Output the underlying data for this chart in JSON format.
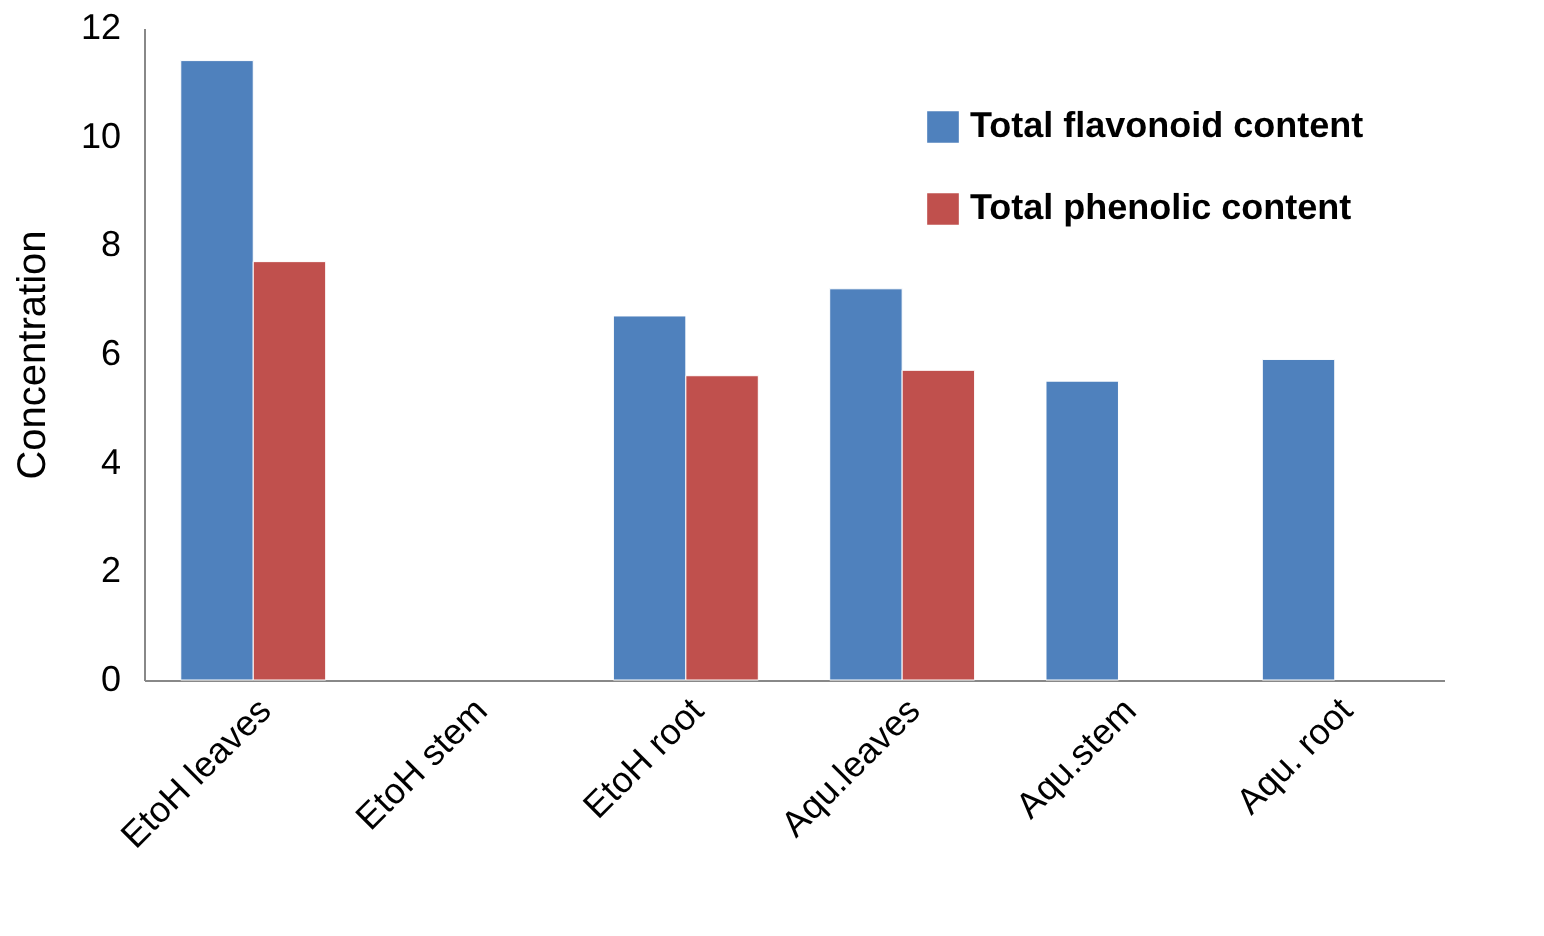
{
  "chart_data": {
    "type": "bar",
    "ylabel": "Concentration",
    "categories": [
      "EtoH leaves",
      "EtoH stem",
      "EtoH root",
      "Aqu.leaves",
      "Aqu.stem",
      "Aqu. root"
    ],
    "series": [
      {
        "name": "Total flavonoid content",
        "color": "#4f81bd",
        "values": [
          11.4,
          null,
          6.7,
          7.2,
          5.5,
          5.9
        ]
      },
      {
        "name": "Total phenolic content",
        "color": "#c0504d",
        "values": [
          7.7,
          null,
          5.6,
          5.7,
          null,
          null
        ]
      }
    ],
    "ylim": [
      0,
      12
    ],
    "yticks": [
      0,
      2,
      4,
      6,
      8,
      10,
      12
    ],
    "grid": false,
    "legend": "top right"
  }
}
